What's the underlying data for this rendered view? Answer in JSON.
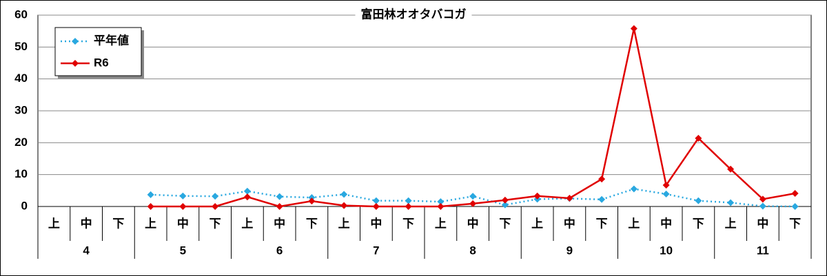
{
  "chart_data": {
    "type": "line",
    "title": "富田林オオタバコガ",
    "categories": [
      "上",
      "中",
      "下",
      "上",
      "中",
      "下",
      "上",
      "中",
      "下",
      "上",
      "中",
      "下",
      "上",
      "中",
      "下",
      "上",
      "中",
      "下",
      "上",
      "中",
      "下",
      "上",
      "中",
      "下"
    ],
    "groups": [
      "4",
      "5",
      "6",
      "7",
      "8",
      "9",
      "10",
      "11"
    ],
    "series": [
      {
        "name": "平年値",
        "color": "#29a8e0",
        "dash": "dotted",
        "values": [
          null,
          null,
          null,
          3.7,
          3.3,
          3.2,
          4.8,
          3.1,
          2.8,
          3.8,
          1.8,
          1.8,
          1.5,
          3.2,
          0.5,
          2.3,
          2.5,
          2.2,
          5.5,
          3.9,
          1.8,
          1.2,
          0.1,
          0
        ]
      },
      {
        "name": "R6",
        "color": "#e00000",
        "dash": "solid",
        "values": [
          null,
          null,
          null,
          0,
          0,
          0,
          3.0,
          0,
          1.7,
          0.3,
          0,
          0,
          0,
          0.9,
          2.0,
          3.3,
          2.6,
          8.6,
          55.8,
          6.7,
          21.4,
          11.7,
          2.3,
          4.1
        ]
      }
    ],
    "ylim": [
      0,
      60
    ],
    "yticks": [
      0,
      10,
      20,
      30,
      40,
      50,
      60
    ],
    "grid": true,
    "legend": "upper-left"
  }
}
